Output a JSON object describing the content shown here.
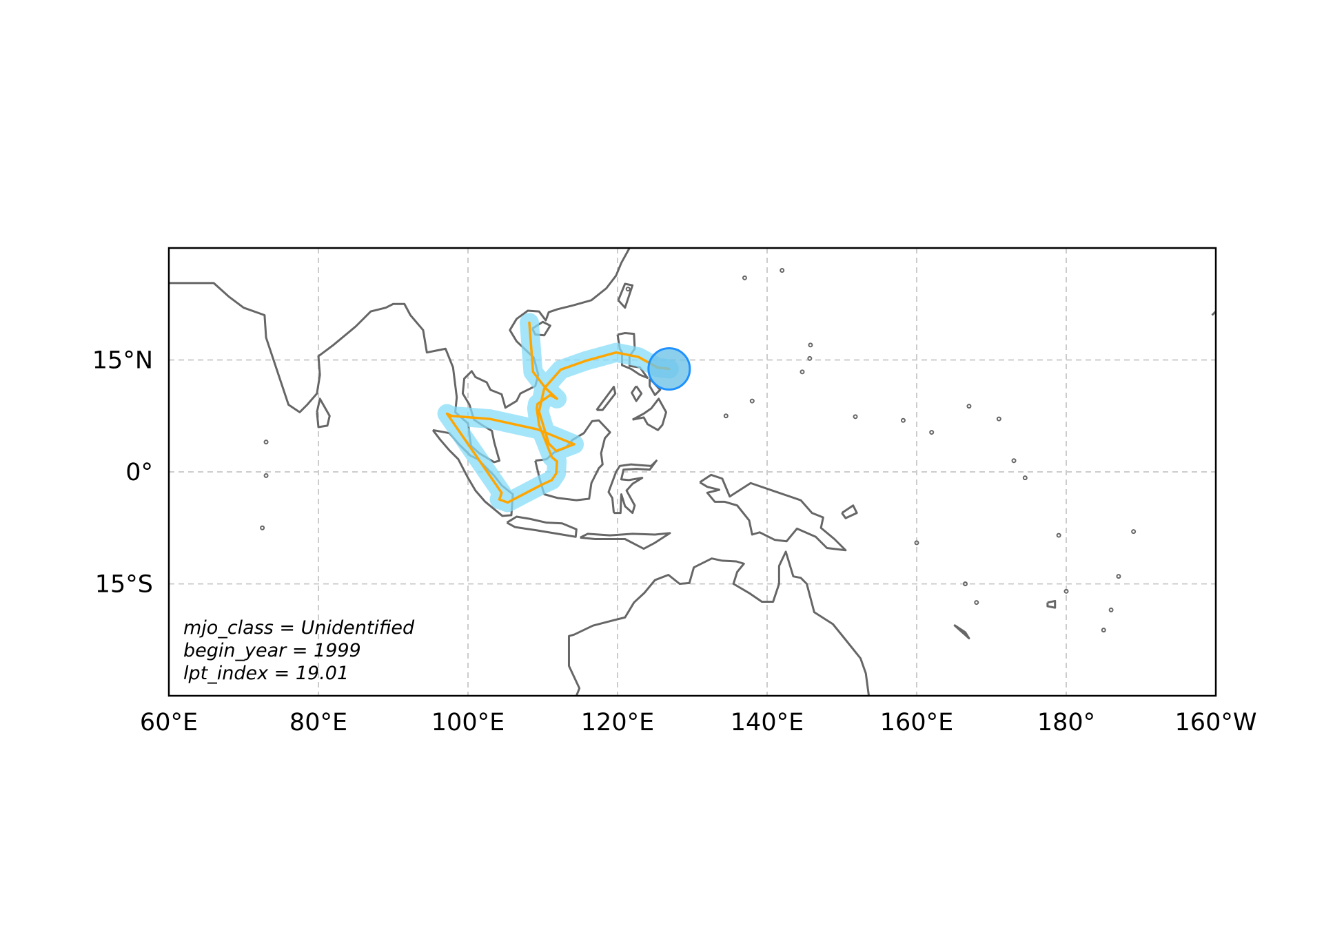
{
  "chart_data": {
    "type": "map",
    "projection": "equirectangular",
    "extent": {
      "lon": [
        60,
        200
      ],
      "lat": [
        -30,
        30
      ]
    },
    "grid": true,
    "x_ticks": {
      "values": [
        60,
        80,
        100,
        120,
        140,
        160,
        180,
        200
      ],
      "labels": [
        "60°E",
        "80°E",
        "100°E",
        "120°E",
        "140°E",
        "160°E",
        "180°",
        "160°W"
      ]
    },
    "y_ticks": {
      "values": [
        15,
        0,
        -15
      ],
      "labels": [
        "15°N",
        "0°",
        "15°S"
      ]
    },
    "track": {
      "lon": [
        108.2,
        108.7,
        110.4,
        111.9,
        111.0,
        109.3,
        109.2,
        109.5,
        110.5,
        111.2,
        111.9,
        111.8,
        111.2,
        109.9,
        105.3,
        104.2,
        104.5,
        97.2,
        97.8,
        102.9,
        109.3,
        114.2,
        111.8,
        110.8,
        109.5,
        110.2,
        112.4,
        115.8,
        119.8,
        122.8,
        125.3,
        126.9
      ],
      "lat": [
        20.0,
        13.4,
        11.2,
        9.8,
        10.3,
        9.1,
        8.5,
        6.3,
        3.8,
        2.0,
        1.4,
        -0.2,
        -1.1,
        -1.7,
        -4.1,
        -3.7,
        -2.8,
        7.8,
        7.5,
        7.1,
        5.7,
        3.7,
        2.8,
        3.8,
        8.1,
        11.2,
        13.7,
        14.9,
        16.0,
        15.4,
        14.0,
        13.8
      ],
      "halo_color": "#87dcf8",
      "line_color": "#ffa500"
    },
    "end_marker": {
      "lon": 126.9,
      "lat": 13.8,
      "fill": "#6ec3e8",
      "edge": "#1e90ff"
    },
    "coastline_color": "#666666",
    "annotation": [
      "mjo_class = Unidentified",
      "begin_year = 1999",
      "lpt_index = 19.01"
    ]
  }
}
